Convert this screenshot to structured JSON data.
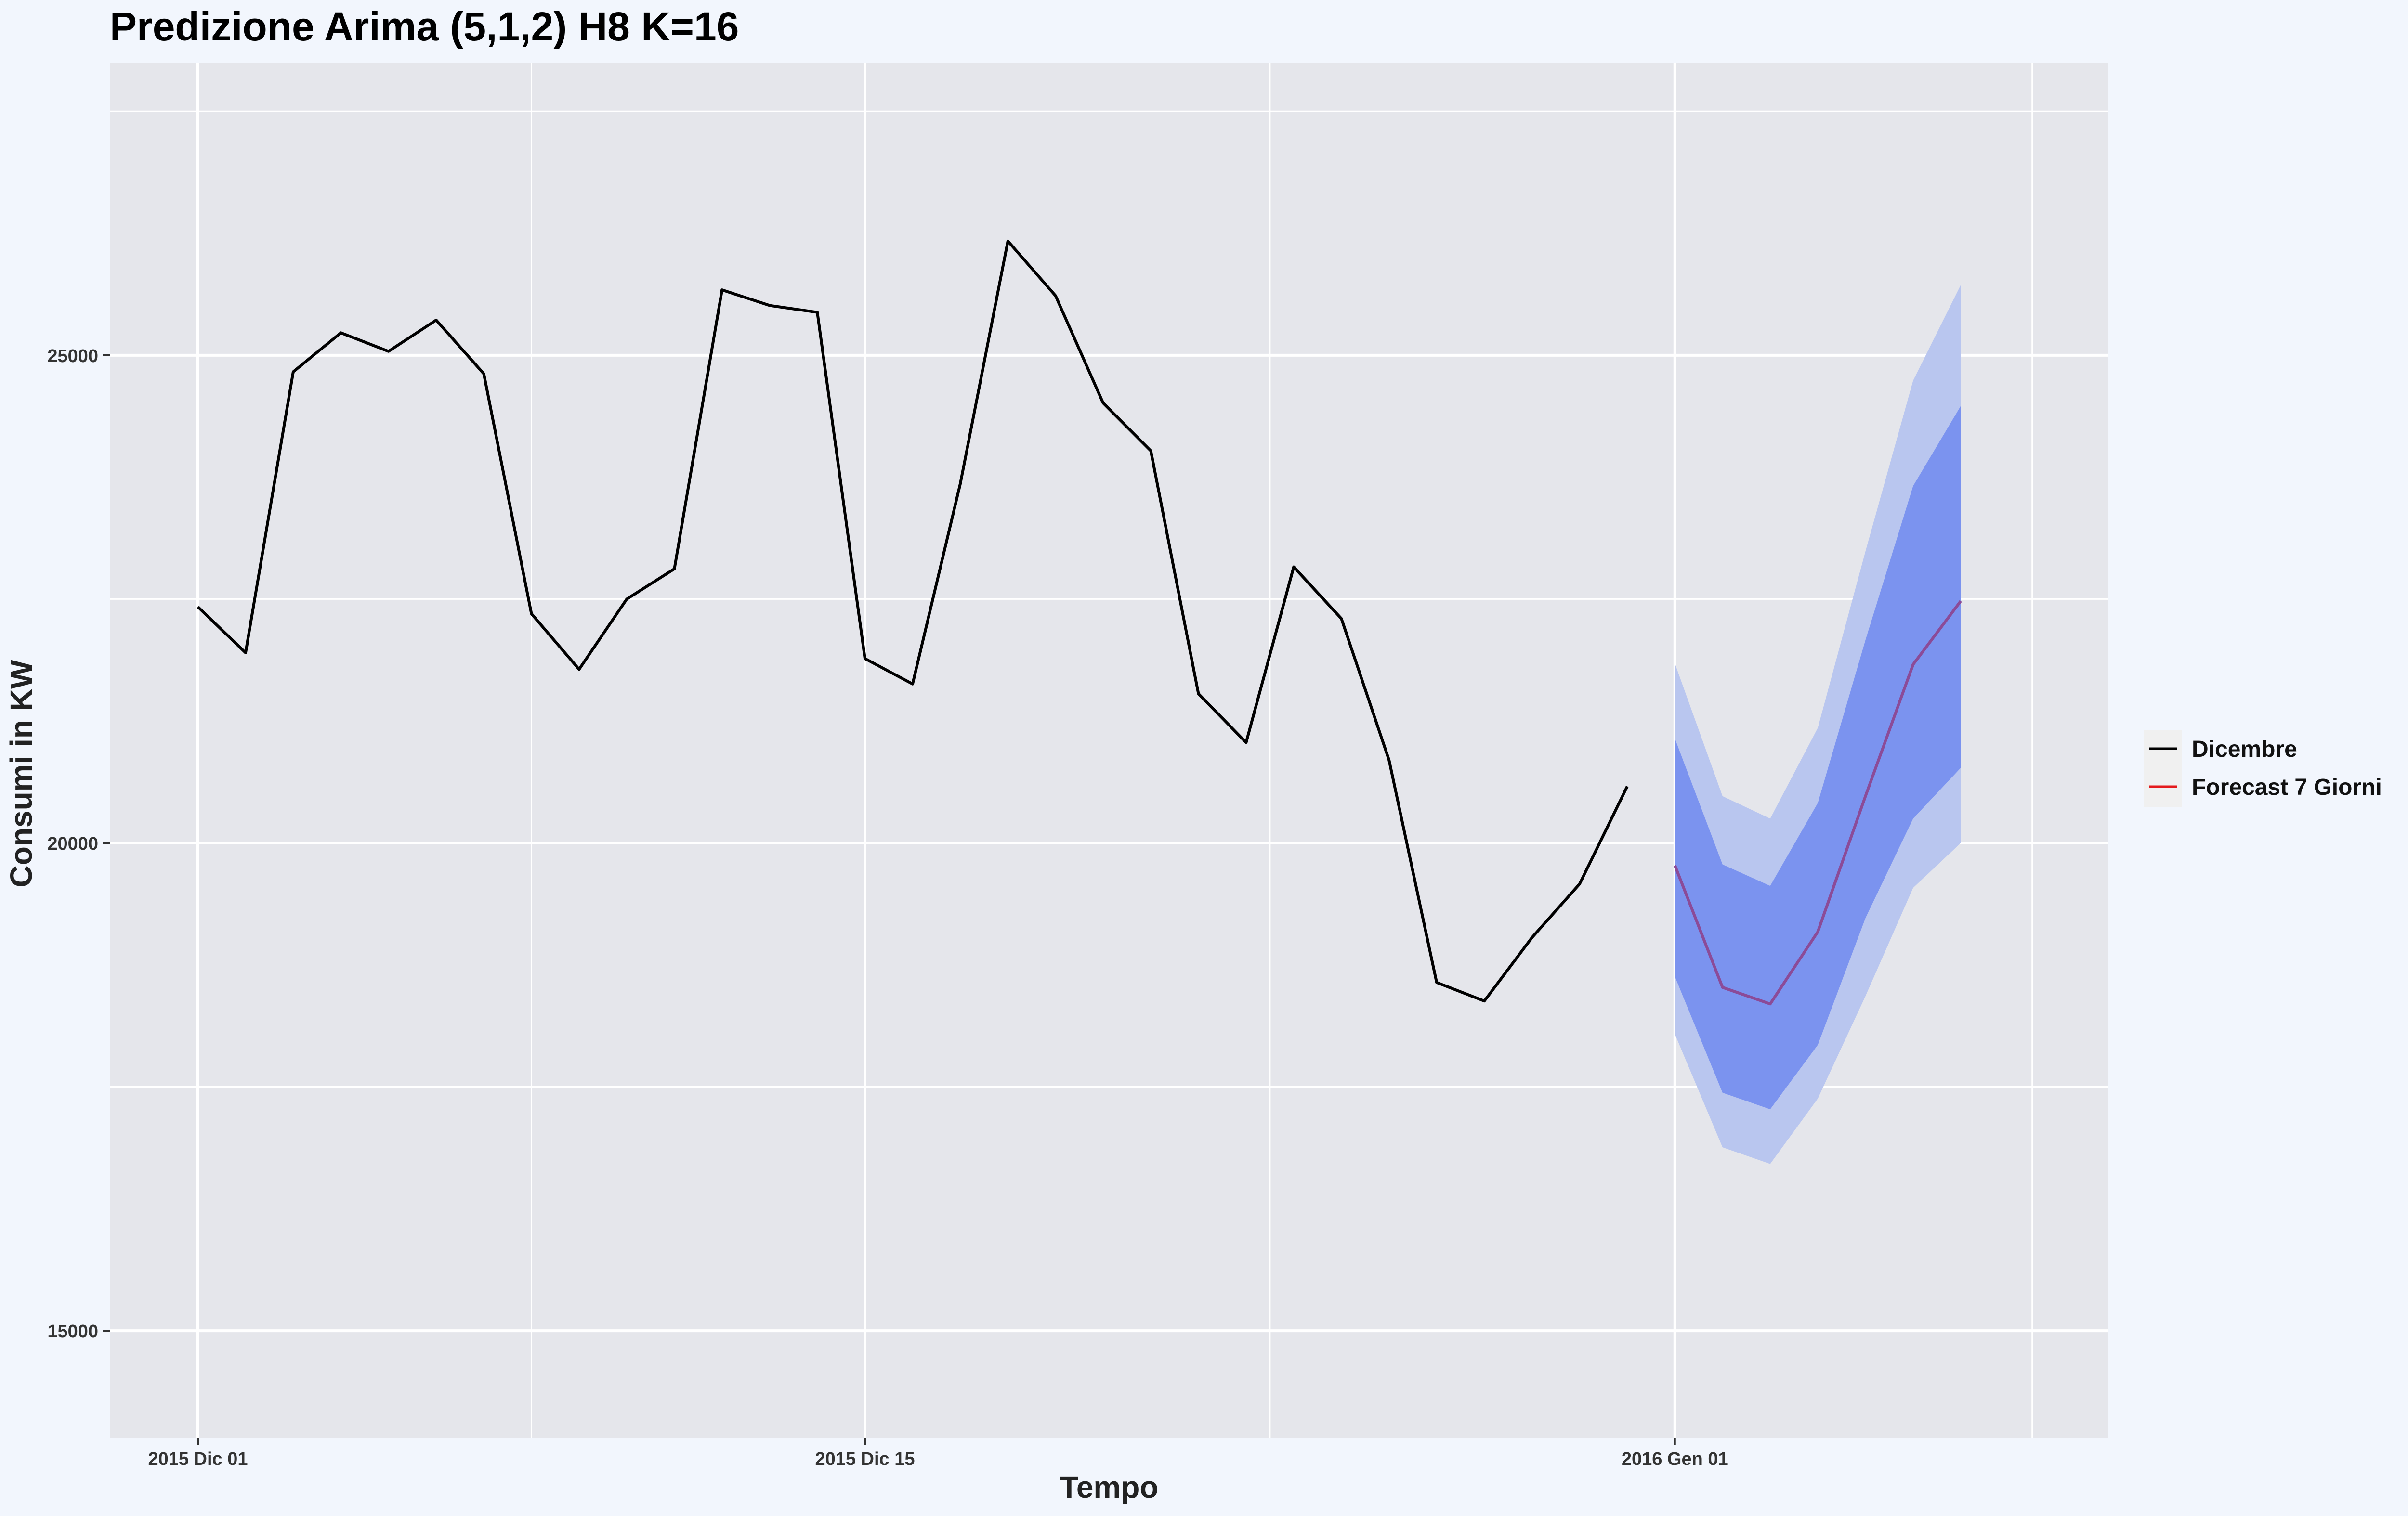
{
  "chart_data": {
    "type": "line",
    "title": "Predizione Arima (5,1,2) H8 K=16",
    "xlabel": "Tempo",
    "ylabel": "Consumi in KW",
    "x_tick_labels": [
      "2015 Dic 01",
      "2015 Dic 15",
      "2016 Gen 01"
    ],
    "x_tick_days": [
      1,
      15,
      32
    ],
    "xlim_days": [
      -0.85,
      41.1
    ],
    "y_ticks": [
      15000,
      20000,
      25000
    ],
    "ylim": [
      13900,
      28000
    ],
    "grid": true,
    "legend_position": "right",
    "series": [
      {
        "name": "Dicembre",
        "color": "#000000",
        "x_days": [
          1,
          2,
          3,
          4,
          5,
          6,
          7,
          8,
          9,
          10,
          11,
          12,
          13,
          14,
          15,
          16,
          17,
          18,
          19,
          20,
          21,
          22,
          23,
          24,
          25,
          26,
          27,
          28,
          29,
          30,
          31
        ],
        "values": [
          22420,
          21950,
          24830,
          25230,
          25040,
          25360,
          24810,
          22350,
          21780,
          22500,
          22810,
          25670,
          25510,
          25440,
          21890,
          21630,
          23680,
          26170,
          25610,
          24510,
          24020,
          21530,
          21030,
          22830,
          22300,
          20850,
          18570,
          18380,
          19030,
          19580,
          20580
        ]
      },
      {
        "name": "Forecast 7 Giorni",
        "color": "#e41a1c",
        "x_days": [
          32,
          33,
          34,
          35,
          36,
          37,
          38
        ],
        "values": [
          19770,
          18520,
          18350,
          19090,
          20480,
          21830,
          22480
        ],
        "intervals": {
          "inner": {
            "lower": [
              18630,
              17440,
              17270,
              17930,
              19230,
              20250,
              20770
            ],
            "upper": [
              21070,
              19780,
              19560,
              20410,
              22080,
              23660,
              24480
            ]
          },
          "outer": {
            "lower": [
              18040,
              16880,
              16710,
              17380,
              18430,
              19540,
              20000
            ],
            "upper": [
              21840,
              20480,
              20250,
              21180,
              22990,
              24740,
              25720
            ]
          }
        }
      }
    ]
  },
  "colors": {
    "page_bg": "#f2f6fd",
    "panel_bg": "#e5e6eb",
    "grid": "#ffffff",
    "interval_inner": "#7b93ef",
    "interval_outer": "#b9c6ef",
    "forecast_line_visible": "#8b4b98"
  }
}
